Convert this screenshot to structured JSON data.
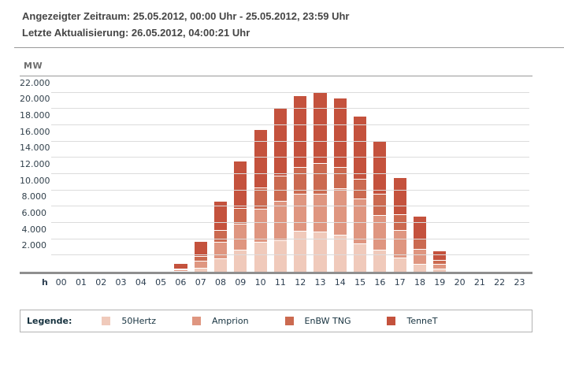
{
  "header": {
    "line1": "Angezeigter Zeitraum: 25.05.2012, 00:00 Uhr - 25.05.2012, 23:59 Uhr",
    "line2": "Letzte Aktualisierung: 26.05.2012, 04:00:21 Uhr"
  },
  "y_axis_unit": "MW",
  "x_axis_unit": "h",
  "legend": {
    "title": "Legende:",
    "items": [
      {
        "label": "50Hertz",
        "color": "#f0cabb"
      },
      {
        "label": "Amprion",
        "color": "#df9680"
      },
      {
        "label": "EnBW TNG",
        "color": "#cb6a50"
      },
      {
        "label": "TenneT",
        "color": "#c4523d"
      }
    ]
  },
  "chart_data": {
    "type": "bar",
    "stacked": true,
    "title": "",
    "xlabel": "h",
    "ylabel": "MW",
    "ylim": [
      0,
      24000
    ],
    "grid": true,
    "legend_position": "bottom",
    "ytick_values": [
      2000,
      4000,
      6000,
      8000,
      10000,
      12000,
      14000,
      16000,
      18000,
      20000,
      22000
    ],
    "ytick_labels": [
      "2.000",
      "4.000",
      "6.000",
      "8.000",
      "10.000",
      "12.000",
      "14.000",
      "16.000",
      "18.000",
      "20.000",
      "22.000"
    ],
    "categories": [
      "00",
      "01",
      "02",
      "03",
      "04",
      "05",
      "06",
      "07",
      "08",
      "09",
      "10",
      "11",
      "12",
      "13",
      "14",
      "15",
      "16",
      "17",
      "18",
      "19",
      "20",
      "21",
      "22",
      "23"
    ],
    "series": [
      {
        "name": "50Hertz",
        "color": "#f0cabb",
        "values": [
          0,
          0,
          0,
          0,
          0,
          0,
          100,
          490,
          1670,
          2700,
          3690,
          3850,
          5050,
          4900,
          4510,
          3530,
          2700,
          1720,
          980,
          390,
          100,
          0,
          0,
          0
        ]
      },
      {
        "name": "Amprion",
        "color": "#df9680",
        "values": [
          0,
          0,
          0,
          0,
          0,
          0,
          200,
          820,
          2020,
          3180,
          4100,
          4900,
          4580,
          4660,
          5720,
          5500,
          4260,
          3430,
          1790,
          590,
          110,
          0,
          0,
          0
        ]
      },
      {
        "name": "EnBW TNG",
        "color": "#cb6a50",
        "values": [
          0,
          0,
          0,
          0,
          0,
          0,
          60,
          590,
          1470,
          1960,
          2600,
          3100,
          3270,
          3840,
          2620,
          2360,
          2670,
          1960,
          1250,
          490,
          90,
          0,
          0,
          0
        ]
      },
      {
        "name": "TenneT",
        "color": "#c4523d",
        "values": [
          0,
          0,
          0,
          0,
          0,
          0,
          680,
          1900,
          3600,
          5800,
          7150,
          8250,
          8800,
          8700,
          8550,
          7800,
          6500,
          4500,
          2840,
          1150,
          0,
          0,
          0,
          0
        ]
      }
    ]
  }
}
